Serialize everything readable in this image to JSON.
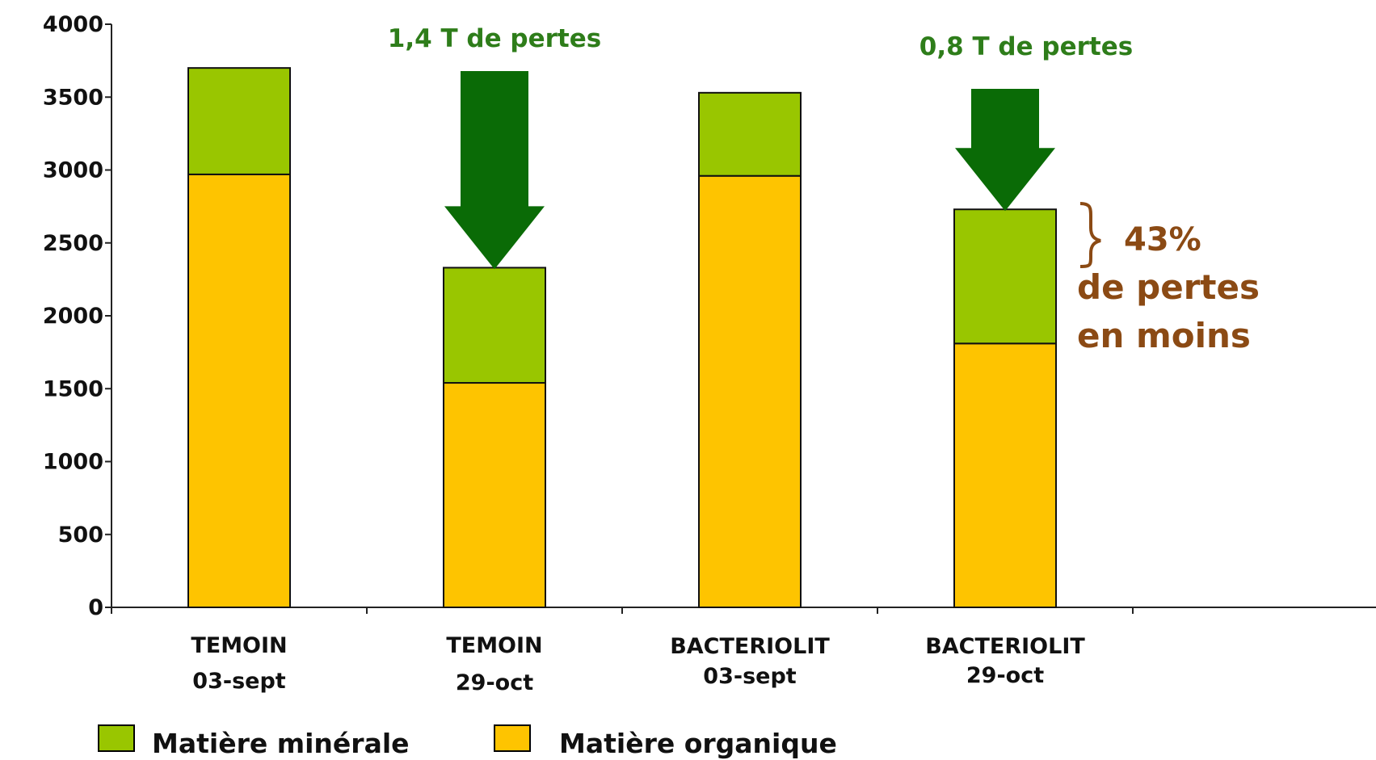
{
  "chart_data": {
    "type": "bar",
    "stacked": true,
    "categories": [
      [
        "TEMOIN",
        "03-sept"
      ],
      [
        "TEMOIN",
        "29-oct"
      ],
      [
        "BACTERIOLIT",
        "03-sept"
      ],
      [
        "BACTERIOLIT",
        "29-oct"
      ]
    ],
    "series": [
      {
        "name": "Matière organique",
        "color": "#fec400",
        "values": [
          2970,
          1540,
          2960,
          1810
        ]
      },
      {
        "name": "Matière minérale",
        "color": "#99c600",
        "values": [
          730,
          790,
          570,
          920
        ]
      }
    ],
    "ylim": [
      0,
      4000
    ],
    "yticks": [
      "0",
      "500",
      "1000",
      "1500",
      "2000",
      "2500",
      "3000",
      "3500",
      "4000"
    ],
    "legend_position": "bottom",
    "grid": false,
    "annotations": {
      "loss_temoin": "1,4 T de pertes",
      "loss_bacteriolit": "0,8 T de pertes",
      "reduction_pct": "43%",
      "reduction_line1": "de pertes",
      "reduction_line2": "en moins"
    },
    "colors": {
      "arrow": "#0a6b06",
      "annotation_green": "#2e7d1a",
      "annotation_brown": "#8b4a14"
    }
  }
}
